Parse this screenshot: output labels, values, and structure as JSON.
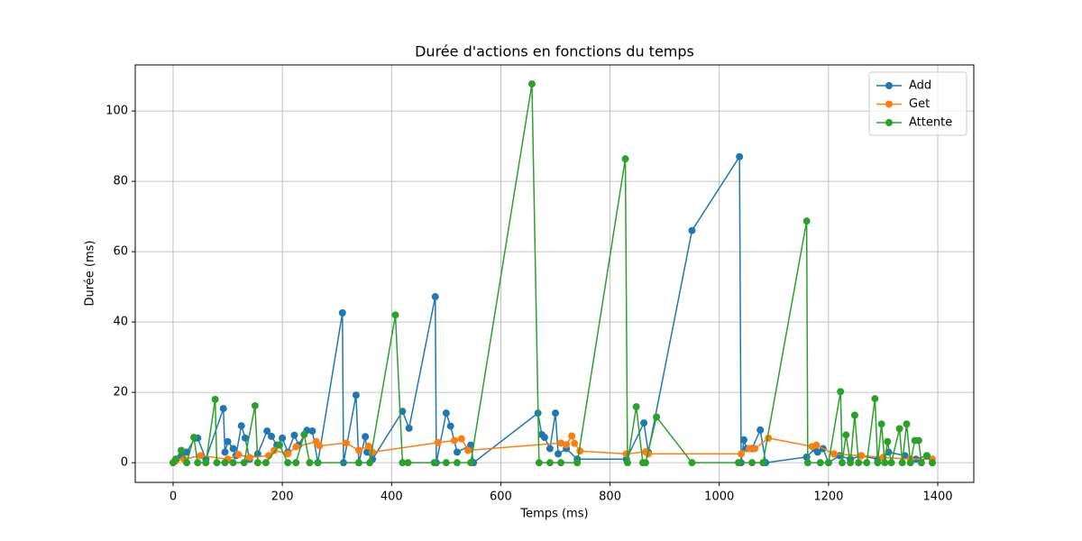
{
  "chart_data": {
    "type": "line",
    "title": "Durée d'actions en fonctions du temps",
    "xlabel": "Temps (ms)",
    "ylabel": "Durée (ms)",
    "xlim": [
      -69.3,
      1466
    ],
    "ylim": [
      -5.6,
      113.1
    ],
    "xticks": [
      0,
      200,
      400,
      600,
      800,
      1000,
      1200,
      1400
    ],
    "yticks": [
      0,
      20,
      40,
      60,
      80,
      100
    ],
    "grid": true,
    "legend": "upper right",
    "series": [
      {
        "name": "Add",
        "color": "#1f77b4",
        "x": [
          0,
          5,
          15,
          25,
          40,
          45,
          60,
          92,
          95,
          100,
          110,
          115,
          125,
          132,
          140,
          155,
          172,
          180,
          190,
          200,
          210,
          222,
          230,
          245,
          255,
          265,
          310,
          312,
          335,
          340,
          352,
          355,
          365,
          420,
          432,
          480,
          482,
          500,
          508,
          520,
          545,
          550,
          668,
          675,
          680,
          690,
          700,
          705,
          720,
          740,
          830,
          862,
          870,
          950,
          1037,
          1040,
          1045,
          1050,
          1060,
          1075,
          1085,
          1160,
          1175,
          1180,
          1190,
          1200,
          1220,
          1240,
          1260,
          1290,
          1310,
          1340,
          1360,
          1380,
          1390
        ],
        "values": [
          0,
          1,
          2,
          3,
          7,
          7,
          1,
          15.4,
          3,
          6,
          4,
          2,
          10.5,
          7,
          1,
          2.5,
          9,
          7.5,
          5,
          7,
          3,
          7.8,
          5,
          9.2,
          9,
          0,
          42.6,
          0,
          19.2,
          0,
          7.4,
          3,
          1,
          14.6,
          9.8,
          47.2,
          0,
          14.1,
          10.4,
          3,
          5,
          0,
          14.1,
          8,
          7.2,
          4,
          14.1,
          2.5,
          4,
          1,
          1,
          11.3,
          3,
          66,
          87,
          0,
          6.5,
          4,
          4,
          9.3,
          0,
          1.6,
          4,
          3,
          4,
          0,
          2,
          1,
          2,
          1,
          3,
          2,
          1,
          2,
          0
        ]
      },
      {
        "name": "Get",
        "color": "#ff7f0e",
        "x": [
          5,
          20,
          50,
          100,
          120,
          140,
          175,
          185,
          210,
          225,
          262,
          268,
          317,
          340,
          358,
          365,
          485,
          515,
          528,
          540,
          710,
          720,
          730,
          735,
          745,
          830,
          865,
          870,
          1040,
          1055,
          1065,
          1090,
          1170,
          1178,
          1210,
          1260,
          1300,
          1350,
          1390
        ],
        "values": [
          0.5,
          1,
          2,
          1,
          2.3,
          1.5,
          2,
          3.5,
          2.5,
          4.5,
          6,
          4.8,
          5.6,
          3.5,
          4.7,
          3,
          5.7,
          6.3,
          6.8,
          3.5,
          5.6,
          5.1,
          7.6,
          5.5,
          3.3,
          2.5,
          3.1,
          2.5,
          2.5,
          4,
          4,
          7,
          4.6,
          5,
          2.5,
          2,
          1.5,
          1,
          1
        ]
      },
      {
        "name": "Attente",
        "color": "#2ca02c",
        "x": [
          0,
          5,
          15,
          25,
          38,
          45,
          60,
          77,
          80,
          95,
          110,
          130,
          150,
          155,
          170,
          195,
          210,
          225,
          240,
          250,
          265,
          340,
          360,
          407,
          420,
          430,
          478,
          500,
          520,
          545,
          657,
          670,
          690,
          710,
          740,
          828,
          832,
          848,
          860,
          865,
          885,
          950,
          1035,
          1060,
          1080,
          1160,
          1162,
          1185,
          1200,
          1222,
          1225,
          1232,
          1240,
          1248,
          1255,
          1270,
          1285,
          1290,
          1297,
          1303,
          1308,
          1315,
          1330,
          1335,
          1343,
          1350,
          1358,
          1365,
          1370,
          1380,
          1390
        ],
        "values": [
          0,
          1,
          3.5,
          0,
          7.2,
          0,
          0,
          18,
          0,
          0,
          0,
          0,
          16.2,
          0,
          0,
          5,
          0,
          0,
          8,
          0,
          0,
          0,
          0,
          42,
          0,
          0,
          0,
          0,
          0,
          0,
          107.7,
          0,
          0,
          0,
          0,
          86.4,
          0,
          15.9,
          0,
          0,
          13,
          0,
          0,
          0,
          0,
          68.7,
          0,
          0,
          0,
          20.2,
          0,
          7.9,
          0,
          13.5,
          0,
          0,
          18.2,
          0,
          11,
          0,
          6,
          0,
          9.7,
          0,
          11,
          0,
          6.3,
          6.3,
          0,
          2,
          0
        ]
      }
    ]
  }
}
